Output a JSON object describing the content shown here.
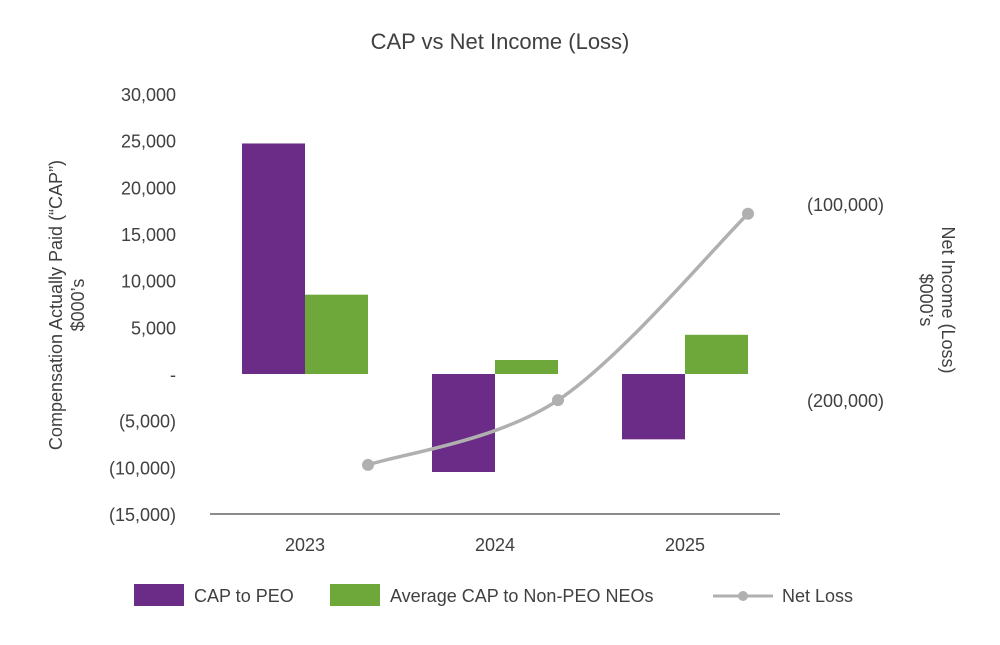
{
  "chart_data": {
    "type": "bar",
    "title": "CAP vs Net Income (Loss)",
    "categories": [
      "2023",
      "2024",
      "2025"
    ],
    "ylabel_left": [
      "Compensation Actually Paid (“CAP”)",
      "$000’s"
    ],
    "ylabel_right": [
      "Net Income (Loss)",
      "$000’s"
    ],
    "y_left": {
      "range": [
        -15000,
        30000
      ],
      "ticks": [
        30000,
        25000,
        20000,
        15000,
        10000,
        5000,
        0,
        -5000,
        -10000,
        -15000
      ],
      "tick_labels": [
        "30,000",
        "25,000",
        "20,000",
        "15,000",
        "10,000",
        "5,000",
        "-",
        "(5,000)",
        "(10,000)",
        "(15,000)"
      ]
    },
    "y_right": {
      "range": [
        -258000,
        -44000
      ],
      "ticks": [
        -100000,
        -200000
      ],
      "tick_labels": [
        "(100,000)",
        "(200,000)"
      ]
    },
    "series": [
      {
        "name": "CAP to PEO",
        "type": "bar",
        "axis": "left",
        "color": "#6B2C87",
        "values": [
          24700,
          -10500,
          -7000
        ]
      },
      {
        "name": "Average CAP to Non-PEO NEOs",
        "type": "bar",
        "axis": "left",
        "color": "#6EA83A",
        "values": [
          8500,
          1500,
          4200
        ]
      },
      {
        "name": "Net Loss",
        "type": "line",
        "axis": "right",
        "color": "#B0B0B0",
        "values": [
          -233000,
          -200000,
          -105000
        ]
      }
    ],
    "legend_position": "bottom",
    "grid": false
  }
}
